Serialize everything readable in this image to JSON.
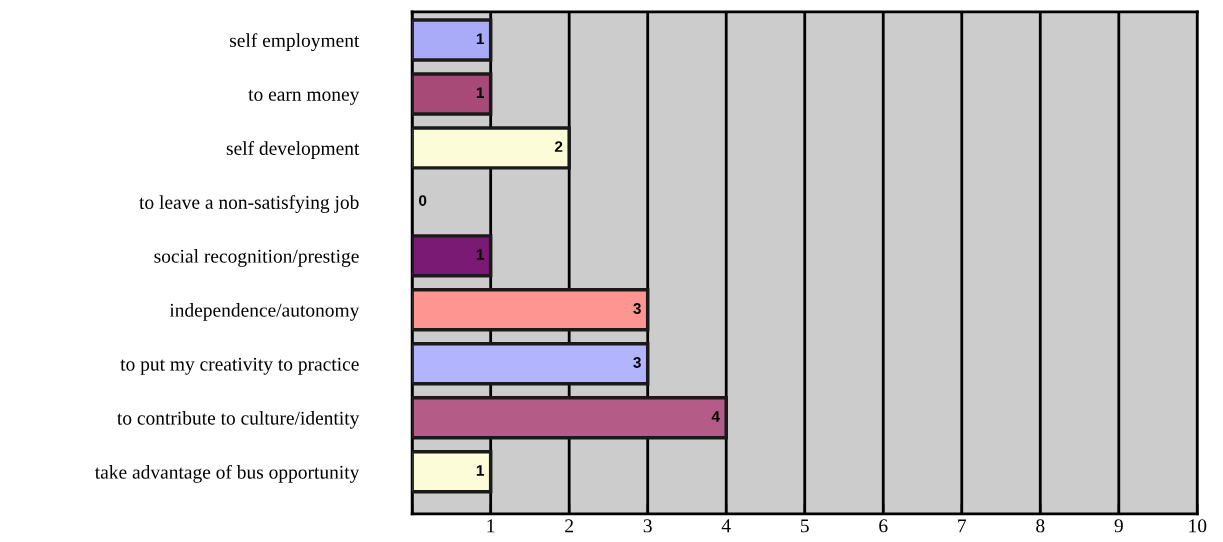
{
  "chart_data": {
    "type": "bar",
    "orientation": "horizontal",
    "categories": [
      "self employment",
      "to earn money",
      "self development",
      "to leave a non-satisfying job",
      "social recognition/prestige",
      "independence/autonomy",
      "to put my creativity to practice",
      "to contribute to culture/identity",
      "take advantage of bus opportunity"
    ],
    "values": [
      1,
      1,
      2,
      0,
      1,
      3,
      3,
      4,
      1
    ],
    "colors": [
      "#a9abf9",
      "#a84a78",
      "#fdfcd9",
      "#f9f6c8",
      "#7a1a75",
      "#fe9590",
      "#b2b4fd",
      "#b45b87",
      "#fdfcd9"
    ],
    "xlim": [
      0,
      10
    ],
    "xticks": [
      {
        "value": 0,
        "label": null
      },
      1,
      2,
      3,
      4,
      5,
      6,
      7,
      8,
      9,
      10
    ],
    "grid": "x",
    "data_labels": true,
    "legend": false
  }
}
